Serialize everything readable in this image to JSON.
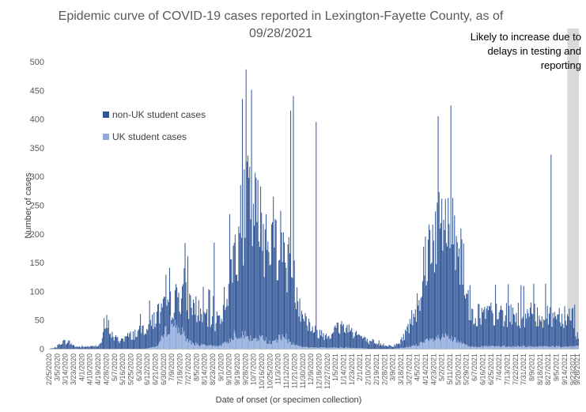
{
  "chart_data": {
    "type": "bar",
    "stacked": true,
    "title": "Epidemic curve of COVID-19 cases reported in Lexington-Fayette County, as of 09/28/2021",
    "xlabel": "Date of onset (or specimen collection)",
    "ylabel": "Number of cases",
    "ylim": [
      0,
      500
    ],
    "yticks": [
      0,
      50,
      100,
      150,
      200,
      250,
      300,
      350,
      400,
      450,
      500
    ],
    "x_start": "2/25/2020",
    "x_end": "9/28/2021",
    "xtick_labels": [
      "2/25/2020",
      "3/5/2020",
      "3/14/2020",
      "3/23/2020",
      "4/1/2020",
      "4/10/2020",
      "4/19/2020",
      "4/28/2020",
      "5/7/2020",
      "5/16/2020",
      "5/25/2020",
      "6/3/2020",
      "6/12/2020",
      "6/21/2020",
      "6/30/2020",
      "7/9/2020",
      "7/18/2020",
      "7/27/2020",
      "8/5/2020",
      "8/14/2020",
      "8/23/2020",
      "9/1/2020",
      "9/10/2020",
      "9/19/2020",
      "9/28/2020",
      "10/7/2020",
      "10/16/2020",
      "10/25/2020",
      "11/3/2020",
      "11/12/2020",
      "11/21/2020",
      "11/30/2020",
      "12/9/2020",
      "12/18/2020",
      "12/27/2020",
      "1/5/2021",
      "1/14/2021",
      "1/23/2021",
      "2/1/2021",
      "2/10/2021",
      "2/19/2021",
      "2/28/2021",
      "3/9/2021",
      "3/18/2021",
      "3/27/2021",
      "4/5/2021",
      "4/14/2021",
      "4/23/2021",
      "5/2/2021",
      "5/11/2021",
      "5/20/2021",
      "5/29/2021",
      "6/7/2021",
      "6/16/2021",
      "6/25/2021",
      "7/4/2021",
      "7/13/2021",
      "7/22/2021",
      "7/31/2021",
      "8/9/2021",
      "8/18/2021",
      "8/27/2021",
      "9/5/2021",
      "9/14/2021",
      "9/23/2021",
      "9/28/2021"
    ],
    "series": [
      {
        "name": "non-UK student cases",
        "color": "#2F5597"
      },
      {
        "name": "UK student cases",
        "color": "#8FAADC"
      }
    ],
    "weekly_totals": [
      0,
      2,
      12,
      12,
      4,
      3,
      4,
      4,
      8,
      45,
      20,
      15,
      20,
      24,
      30,
      38,
      48,
      60,
      68,
      78,
      85,
      110,
      80,
      70,
      58,
      55,
      48,
      62,
      110,
      170,
      215,
      270,
      240,
      215,
      205,
      200,
      190,
      165,
      130,
      95,
      55,
      38,
      30,
      25,
      25,
      35,
      40,
      35,
      28,
      20,
      12,
      8,
      8,
      6,
      5,
      10,
      30,
      55,
      95,
      160,
      200,
      215,
      220,
      230,
      200,
      150,
      60
    ],
    "weekly_uk": [
      0,
      0,
      0,
      0,
      0,
      0,
      0,
      0,
      0,
      0,
      0,
      0,
      0,
      0,
      0,
      0,
      2,
      5,
      25,
      45,
      40,
      25,
      12,
      8,
      6,
      5,
      5,
      6,
      12,
      25,
      28,
      20,
      15,
      20,
      15,
      10,
      18,
      20,
      10,
      5,
      3,
      2,
      2,
      2,
      2,
      2,
      2,
      2,
      1,
      1,
      0,
      0,
      0,
      0,
      0,
      1,
      2,
      5,
      8,
      12,
      15,
      18,
      20,
      18,
      12,
      8,
      4
    ],
    "peaks": [
      {
        "date": "11/19/2020",
        "value": 440
      },
      {
        "date": "11/16/2020",
        "value": 415
      },
      {
        "date": "12/14/2020",
        "value": 395
      },
      {
        "date": "8/24/2020",
        "value": 185
      },
      {
        "date": "8/29/2021",
        "value": 338
      }
    ],
    "shaded_region": {
      "from": "9/17/2021",
      "to": "9/28/2021",
      "color": "#D9D9D9",
      "label": "Likely to increase due to delays in testing and reporting"
    },
    "legend_position": "upper-left",
    "grid": false
  }
}
